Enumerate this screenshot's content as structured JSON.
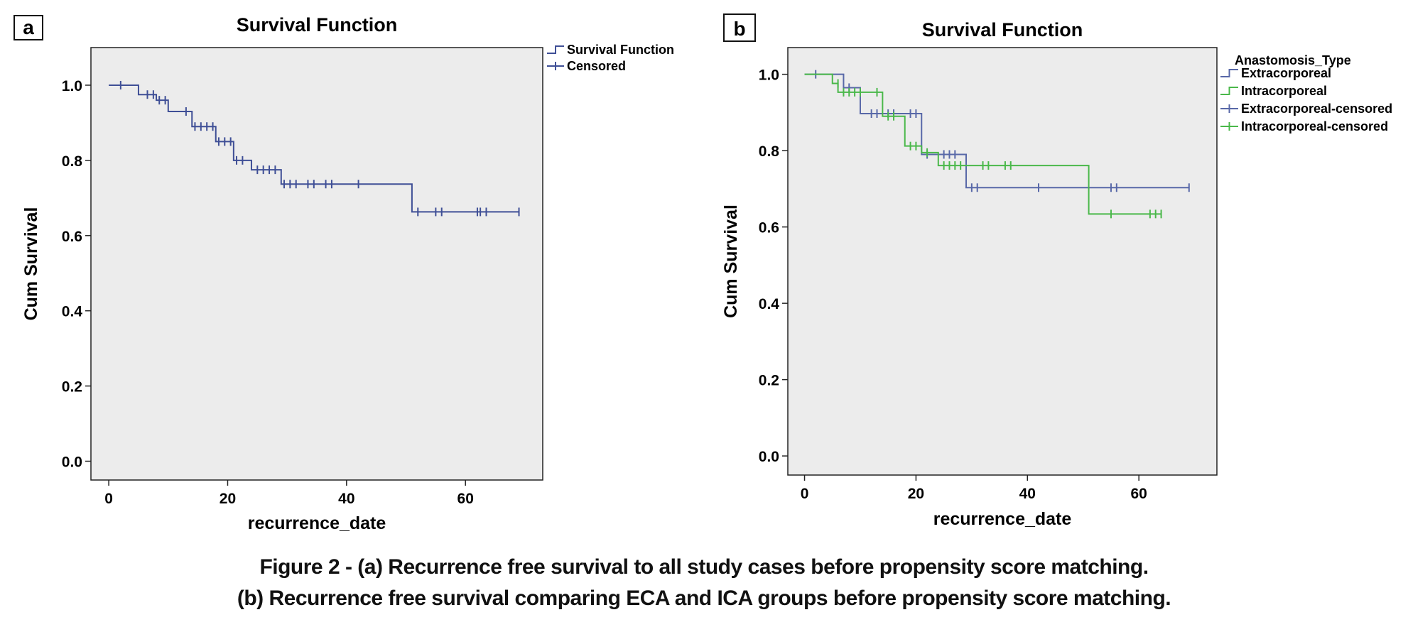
{
  "caption": {
    "line1": "Figure 2 - (a) Recurrence free survival to all study cases before propensity score matching.",
    "line2": "(b) Recurrence free survival comparing ECA and ICA groups before propensity score matching."
  },
  "colors": {
    "plot_bg": "#ececec",
    "overall": "#3f4f96",
    "extracorporeal": "#5868a8",
    "intracorporeal": "#4ab84a"
  },
  "chart_data": [
    {
      "panel_label": "a",
      "type": "line",
      "step": true,
      "title": "Survival Function",
      "xlabel": "recurrence_date",
      "ylabel": "Cum Survival",
      "xlim": [
        -3,
        73
      ],
      "ylim": [
        -0.05,
        1.1
      ],
      "x_ticks": [
        0,
        20,
        40,
        60
      ],
      "y_ticks": [
        0.0,
        0.2,
        0.4,
        0.6,
        0.8,
        1.0
      ],
      "y_tick_labels": [
        "0.0",
        "0.2",
        "0.4",
        "0.6",
        "0.8",
        "1.0"
      ],
      "legend": {
        "placement": "right",
        "title": "",
        "entries": [
          "Survival Function",
          "Censored"
        ]
      },
      "series": [
        {
          "name": "Survival Function",
          "color_key": "overall",
          "steps": [
            [
              0,
              1.0
            ],
            [
              5,
              0.975
            ],
            [
              8,
              0.96
            ],
            [
              10,
              0.93
            ],
            [
              14,
              0.89
            ],
            [
              18,
              0.85
            ],
            [
              21,
              0.8
            ],
            [
              24,
              0.775
            ],
            [
              29,
              0.737
            ],
            [
              51,
              0.663
            ],
            [
              69,
              0.663
            ]
          ],
          "censored": [
            [
              2,
              1.0
            ],
            [
              6.5,
              0.975
            ],
            [
              7.5,
              0.975
            ],
            [
              8.5,
              0.96
            ],
            [
              9.5,
              0.96
            ],
            [
              13,
              0.93
            ],
            [
              14.5,
              0.89
            ],
            [
              15.5,
              0.89
            ],
            [
              16.5,
              0.89
            ],
            [
              17.5,
              0.89
            ],
            [
              18.5,
              0.85
            ],
            [
              19.5,
              0.85
            ],
            [
              20.5,
              0.85
            ],
            [
              21.5,
              0.8
            ],
            [
              22.5,
              0.8
            ],
            [
              25,
              0.775
            ],
            [
              26,
              0.775
            ],
            [
              27,
              0.775
            ],
            [
              28,
              0.775
            ],
            [
              29.5,
              0.737
            ],
            [
              30.5,
              0.737
            ],
            [
              31.5,
              0.737
            ],
            [
              33.5,
              0.737
            ],
            [
              34.5,
              0.737
            ],
            [
              36.5,
              0.737
            ],
            [
              37.5,
              0.737
            ],
            [
              42,
              0.737
            ],
            [
              52,
              0.663
            ],
            [
              55,
              0.663
            ],
            [
              56,
              0.663
            ],
            [
              62,
              0.663
            ],
            [
              62.5,
              0.663
            ],
            [
              63.5,
              0.663
            ],
            [
              69,
              0.663
            ]
          ]
        }
      ]
    },
    {
      "panel_label": "b",
      "type": "line",
      "step": true,
      "title": "Survival Function",
      "xlabel": "recurrence_date",
      "ylabel": "Cum Survival",
      "xlim": [
        -3,
        74
      ],
      "ylim": [
        -0.05,
        1.07
      ],
      "x_ticks": [
        0,
        20,
        40,
        60
      ],
      "y_ticks": [
        0.0,
        0.2,
        0.4,
        0.6,
        0.8,
        1.0
      ],
      "y_tick_labels": [
        "0.0",
        "0.2",
        "0.4",
        "0.6",
        "0.8",
        "1.0"
      ],
      "legend": {
        "placement": "right",
        "title": "Anastomosis_Type",
        "entries": [
          "Extracorporeal",
          "Intracorporeal",
          "Extracorporeal-censored",
          "Intracorporeal-censored"
        ]
      },
      "series": [
        {
          "name": "Extracorporeal",
          "color_key": "extracorporeal",
          "steps": [
            [
              0,
              1.0
            ],
            [
              7,
              0.965
            ],
            [
              10,
              0.897
            ],
            [
              21,
              0.79
            ],
            [
              29,
              0.703
            ],
            [
              69,
              0.703
            ]
          ],
          "censored": [
            [
              2,
              1.0
            ],
            [
              8,
              0.965
            ],
            [
              12,
              0.897
            ],
            [
              13,
              0.897
            ],
            [
              15,
              0.897
            ],
            [
              16,
              0.897
            ],
            [
              19,
              0.897
            ],
            [
              20,
              0.897
            ],
            [
              22,
              0.79
            ],
            [
              25,
              0.79
            ],
            [
              26,
              0.79
            ],
            [
              27,
              0.79
            ],
            [
              30,
              0.703
            ],
            [
              31,
              0.703
            ],
            [
              42,
              0.703
            ],
            [
              55,
              0.703
            ],
            [
              56,
              0.703
            ],
            [
              69,
              0.703
            ]
          ]
        },
        {
          "name": "Intracorporeal",
          "color_key": "intracorporeal",
          "steps": [
            [
              0,
              1.0
            ],
            [
              5,
              0.976
            ],
            [
              6,
              0.953
            ],
            [
              14,
              0.89
            ],
            [
              18,
              0.812
            ],
            [
              21,
              0.795
            ],
            [
              24,
              0.761
            ],
            [
              51,
              0.634
            ],
            [
              64,
              0.634
            ]
          ],
          "censored": [
            [
              6,
              0.976
            ],
            [
              7,
              0.953
            ],
            [
              8,
              0.953
            ],
            [
              9,
              0.953
            ],
            [
              10,
              0.953
            ],
            [
              13,
              0.953
            ],
            [
              15,
              0.89
            ],
            [
              16,
              0.89
            ],
            [
              19,
              0.812
            ],
            [
              20,
              0.812
            ],
            [
              22,
              0.795
            ],
            [
              25,
              0.761
            ],
            [
              26,
              0.761
            ],
            [
              27,
              0.761
            ],
            [
              28,
              0.761
            ],
            [
              32,
              0.761
            ],
            [
              33,
              0.761
            ],
            [
              36,
              0.761
            ],
            [
              37,
              0.761
            ],
            [
              55,
              0.634
            ],
            [
              62,
              0.634
            ],
            [
              63,
              0.634
            ],
            [
              64,
              0.634
            ]
          ]
        }
      ]
    }
  ]
}
